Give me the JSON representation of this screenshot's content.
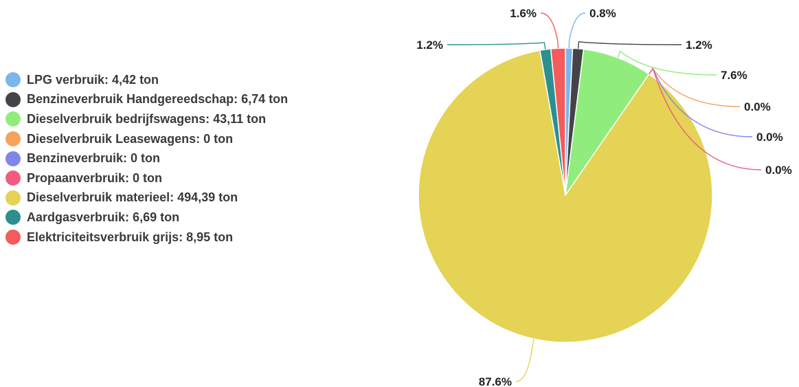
{
  "chart_data": {
    "type": "pie",
    "title": "",
    "legend_position": "left",
    "slices": [
      {
        "label": "LPG verbruik: 4,42 ton",
        "name": "LPG verbruik",
        "value": 4.42,
        "unit": "ton",
        "percent_label": "0.8%",
        "color": "#7cb5ec"
      },
      {
        "label": "Benzineverbruik Handgereedschap: 6,74 ton",
        "name": "Benzineverbruik Handgereedschap",
        "value": 6.74,
        "unit": "ton",
        "percent_label": "1.2%",
        "color": "#434348"
      },
      {
        "label": "Dieselverbruik bedrijfswagens: 43,11 ton",
        "name": "Dieselverbruik bedrijfswagens",
        "value": 43.11,
        "unit": "ton",
        "percent_label": "7.6%",
        "color": "#90ed7d"
      },
      {
        "label": "Dieselverbruik Leasewagens: 0 ton",
        "name": "Dieselverbruik Leasewagens",
        "value": 0,
        "unit": "ton",
        "percent_label": "0.0%",
        "color": "#f7a35c"
      },
      {
        "label": "Benzineverbruik: 0 ton",
        "name": "Benzineverbruik",
        "value": 0,
        "unit": "ton",
        "percent_label": "0.0%",
        "color": "#8085e9"
      },
      {
        "label": "Propaanverbruik: 0 ton",
        "name": "Propaanverbruik",
        "value": 0,
        "unit": "ton",
        "percent_label": "0.0%",
        "color": "#f15c80"
      },
      {
        "label": "Dieselverbruik materieel: 494,39 ton",
        "name": "Dieselverbruik materieel",
        "value": 494.39,
        "unit": "ton",
        "percent_label": "87.6%",
        "color": "#e4d354"
      },
      {
        "label": "Aardgasverbruik: 6,69 ton",
        "name": "Aardgasverbruik",
        "value": 6.69,
        "unit": "ton",
        "percent_label": "1.2%",
        "color": "#2b908f"
      },
      {
        "label": "Elektriciteitsverbruik grijs: 8,95 ton",
        "name": "Elektriciteitsverbruik grijs",
        "value": 8.95,
        "unit": "ton",
        "percent_label": "1.6%",
        "color": "#f45b5b"
      }
    ]
  }
}
